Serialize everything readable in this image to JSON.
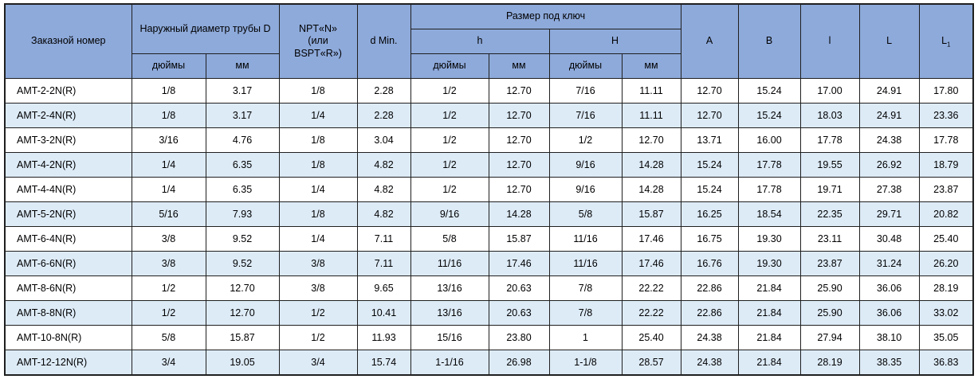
{
  "colors": {
    "header_bg": "#8EAADB",
    "row_bg": "#FFFFFF",
    "row_alt_bg": "#DDEBF7",
    "border": "#1F1F1F",
    "text": "#000000"
  },
  "table": {
    "header": {
      "order_number": "Заказной номер",
      "outer_diameter": "Наружный диаметр трубы D",
      "npt": "NPT«N»\n(или\nBSPT«R»)",
      "d_min": "d Min.",
      "wrench_size": "Размер под ключ",
      "h_lower": "h",
      "h_upper": "H",
      "inches": "дюймы",
      "mm": "мм",
      "a": "A",
      "b": "B",
      "l_small": "l",
      "l_big": "L",
      "l1_main": "L",
      "l1_sub": "1"
    },
    "rows": [
      [
        "AMT-2-2N(R)",
        "1/8",
        "3.17",
        "1/8",
        "2.28",
        "1/2",
        "12.70",
        "7/16",
        "11.11",
        "12.70",
        "15.24",
        "17.00",
        "24.91",
        "17.80"
      ],
      [
        "AMT-2-4N(R)",
        "1/8",
        "3.17",
        "1/4",
        "2.28",
        "1/2",
        "12.70",
        "7/16",
        "11.11",
        "12.70",
        "15.24",
        "18.03",
        "24.91",
        "23.36"
      ],
      [
        "AMT-3-2N(R)",
        "3/16",
        "4.76",
        "1/8",
        "3.04",
        "1/2",
        "12.70",
        "1/2",
        "12.70",
        "13.71",
        "16.00",
        "17.78",
        "24.38",
        "17.78"
      ],
      [
        "AMT-4-2N(R)",
        "1/4",
        "6.35",
        "1/8",
        "4.82",
        "1/2",
        "12.70",
        "9/16",
        "14.28",
        "15.24",
        "17.78",
        "19.55",
        "26.92",
        "18.79"
      ],
      [
        "AMT-4-4N(R)",
        "1/4",
        "6.35",
        "1/4",
        "4.82",
        "1/2",
        "12.70",
        "9/16",
        "14.28",
        "15.24",
        "17.78",
        "19.71",
        "27.38",
        "23.87"
      ],
      [
        "AMT-5-2N(R)",
        "5/16",
        "7.93",
        "1/8",
        "4.82",
        "9/16",
        "14.28",
        "5/8",
        "15.87",
        "16.25",
        "18.54",
        "22.35",
        "29.71",
        "20.82"
      ],
      [
        "AMT-6-4N(R)",
        "3/8",
        "9.52",
        "1/4",
        "7.11",
        "5/8",
        "15.87",
        "11/16",
        "17.46",
        "16.75",
        "19.30",
        "23.11",
        "30.48",
        "25.40"
      ],
      [
        "AMT-6-6N(R)",
        "3/8",
        "9.52",
        "3/8",
        "7.11",
        "11/16",
        "17.46",
        "11/16",
        "17.46",
        "16.76",
        "19.30",
        "23.87",
        "31.24",
        "26.20"
      ],
      [
        "AMT-8-6N(R)",
        "1/2",
        "12.70",
        "3/8",
        "9.65",
        "13/16",
        "20.63",
        "7/8",
        "22.22",
        "22.86",
        "21.84",
        "25.90",
        "36.06",
        "28.19"
      ],
      [
        "AMT-8-8N(R)",
        "1/2",
        "12.70",
        "1/2",
        "10.41",
        "13/16",
        "20.63",
        "7/8",
        "22.22",
        "22.86",
        "21.84",
        "25.90",
        "36.06",
        "33.02"
      ],
      [
        "AMT-10-8N(R)",
        "5/8",
        "15.87",
        "1/2",
        "11.93",
        "15/16",
        "23.80",
        "1",
        "25.40",
        "24.38",
        "21.84",
        "27.94",
        "38.10",
        "35.05"
      ],
      [
        "AMT-12-12N(R)",
        "3/4",
        "19.05",
        "3/4",
        "15.74",
        "1-1/16",
        "26.98",
        "1-1/8",
        "28.57",
        "24.38",
        "21.84",
        "28.19",
        "38.35",
        "36.83"
      ]
    ]
  }
}
